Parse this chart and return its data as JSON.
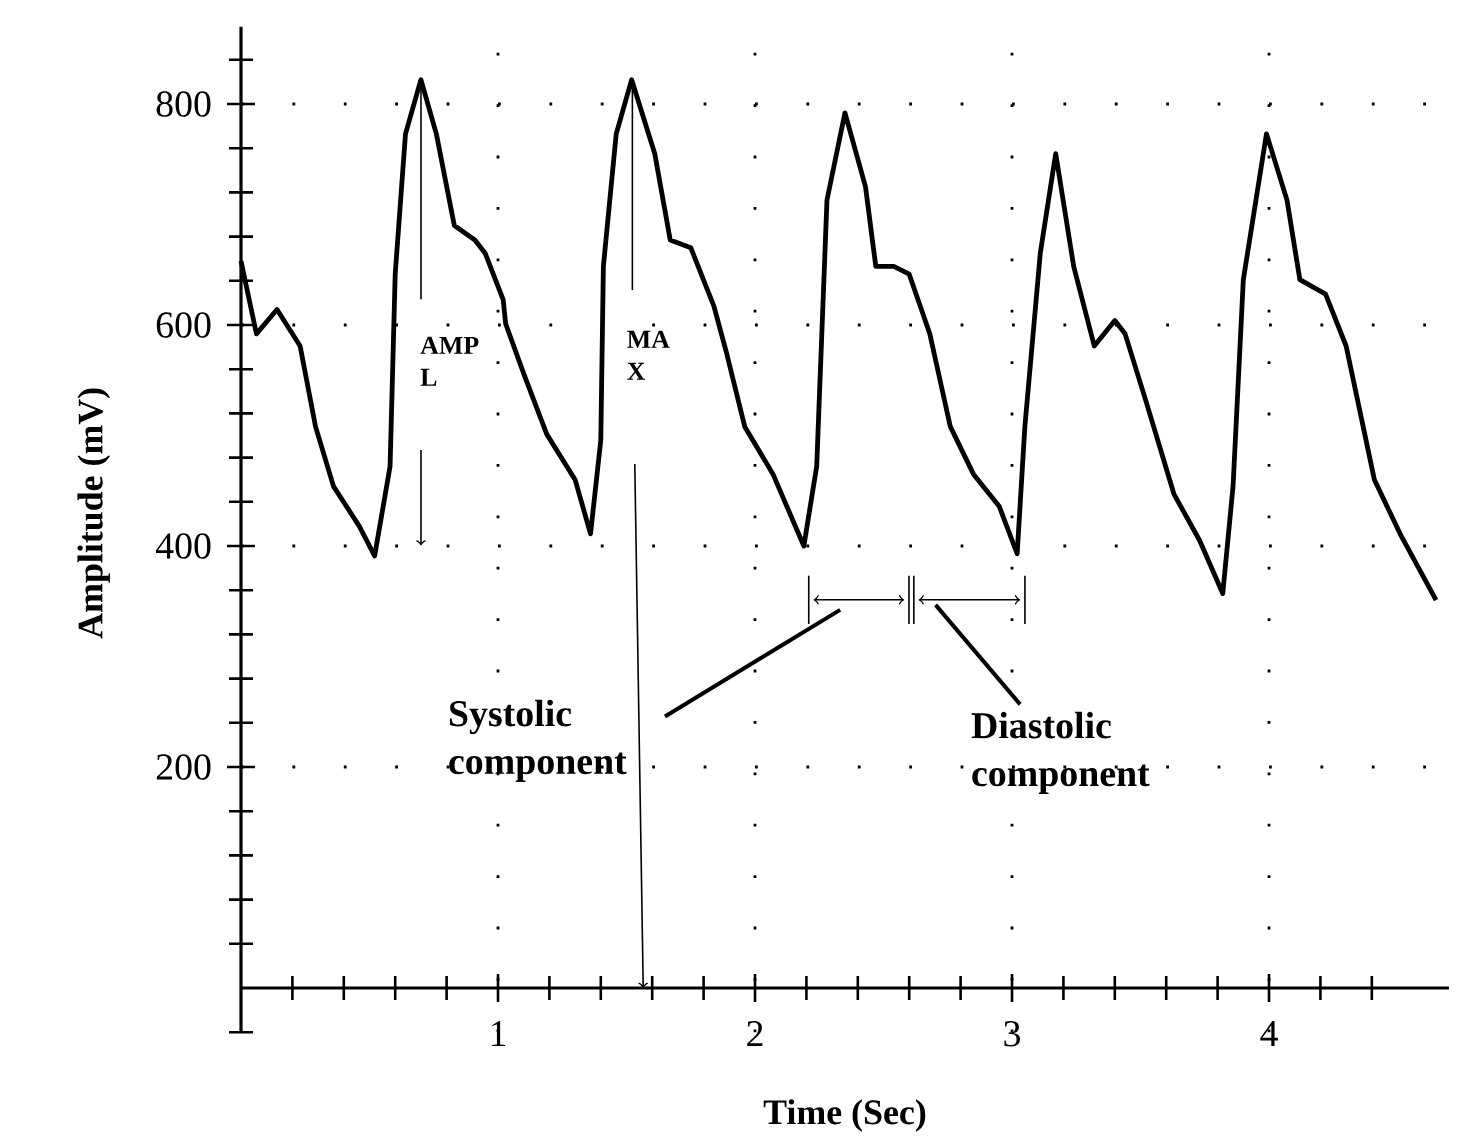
{
  "chart_data": {
    "type": "line",
    "xlabel": "Time (Sec)",
    "ylabel": "Amplitude (mV)",
    "x": [
      0.0,
      0.06,
      0.14,
      0.23,
      0.29,
      0.36,
      0.46,
      0.52,
      0.58,
      0.6,
      0.64,
      0.7,
      0.76,
      0.83,
      0.91,
      0.95,
      1.02,
      1.03,
      1.1,
      1.19,
      1.3,
      1.36,
      1.4,
      1.41,
      1.46,
      1.52,
      1.61,
      1.67,
      1.75,
      1.84,
      1.89,
      1.96,
      2.07,
      2.19,
      2.24,
      2.28,
      2.35,
      2.43,
      2.47,
      2.54,
      2.6,
      2.68,
      2.76,
      2.85,
      2.95,
      3.02,
      3.05,
      3.11,
      3.17,
      3.24,
      3.32,
      3.4,
      3.44,
      3.52,
      3.63,
      3.73,
      3.82,
      3.86,
      3.9,
      3.99,
      4.07,
      4.12,
      4.22,
      4.3,
      4.41,
      4.51,
      4.65
    ],
    "series": [
      {
        "color": "#000000",
        "values": [
          658,
          592,
          614,
          581,
          508,
          454,
          418,
          391,
          472,
          646,
          773,
          822,
          773,
          690,
          677,
          665,
          623,
          601,
          556,
          501,
          460,
          411,
          496,
          653,
          773,
          822,
          755,
          677,
          670,
          617,
          574,
          508,
          465,
          400,
          472,
          713,
          792,
          725,
          653,
          653,
          646,
          592,
          508,
          465,
          436,
          393,
          508,
          665,
          755,
          653,
          581,
          604,
          592,
          532,
          447,
          405,
          357,
          454,
          641,
          773,
          713,
          641,
          628,
          581,
          460,
          411,
          351
        ]
      }
    ],
    "xlim": [
      0,
      4.7
    ],
    "ylim": [
      -40,
      870
    ],
    "xticks": [
      {
        "value": 0.2,
        "label": null
      },
      {
        "value": 0.4,
        "label": null
      },
      {
        "value": 0.6,
        "label": null
      },
      {
        "value": 0.8,
        "label": null
      },
      1,
      {
        "value": 1.2,
        "label": null
      },
      {
        "value": 1.4,
        "label": null
      },
      {
        "value": 1.6,
        "label": null
      },
      {
        "value": 1.8,
        "label": null
      },
      2,
      {
        "value": 2.2,
        "label": null
      },
      {
        "value": 2.4,
        "label": null
      },
      {
        "value": 2.6,
        "label": null
      },
      {
        "value": 2.8,
        "label": null
      },
      3,
      {
        "value": 3.2,
        "label": null
      },
      {
        "value": 3.4,
        "label": null
      },
      {
        "value": 3.6,
        "label": null
      },
      {
        "value": 3.8,
        "label": null
      },
      4,
      {
        "value": 4.2,
        "label": null
      },
      {
        "value": 4.4,
        "label": null
      }
    ],
    "yticks": [
      {
        "value": -40,
        "label": null
      },
      {
        "value": 40,
        "label": null
      },
      {
        "value": 80,
        "label": null
      },
      {
        "value": 120,
        "label": null
      },
      {
        "value": 160,
        "label": null
      },
      200,
      {
        "value": 240,
        "label": null
      },
      {
        "value": 280,
        "label": null
      },
      {
        "value": 320,
        "label": null
      },
      {
        "value": 360,
        "label": null
      },
      400,
      {
        "value": 440,
        "label": null
      },
      {
        "value": 480,
        "label": null
      },
      {
        "value": 520,
        "label": null
      },
      {
        "value": 560,
        "label": null
      },
      600,
      {
        "value": 640,
        "label": null
      },
      {
        "value": 680,
        "label": null
      },
      {
        "value": 720,
        "label": null
      },
      {
        "value": 760,
        "label": null
      },
      800,
      {
        "value": 840,
        "label": null
      }
    ],
    "grid": true,
    "marker": "none",
    "line_style": "solid",
    "annotations": [
      "AMP L",
      "MA X",
      "Systolic component",
      "Diastolic component"
    ]
  }
}
